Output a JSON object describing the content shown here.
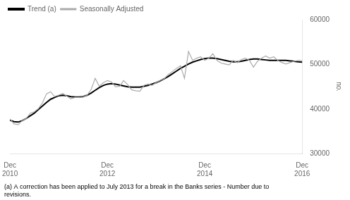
{
  "chart_data": {
    "type": "line",
    "ylabel": "no.",
    "annotations": [
      "(a) A correction has been applied to July 2013 for a break in the Banks series - Number due to\nrevisions."
    ],
    "categories": [
      "Dec\n2010",
      null,
      null,
      null,
      null,
      null,
      null,
      null,
      null,
      null,
      null,
      null,
      null,
      null,
      null,
      null,
      null,
      null,
      null,
      null,
      null,
      null,
      null,
      null,
      "Dec\n2012",
      null,
      null,
      null,
      null,
      null,
      null,
      null,
      null,
      null,
      null,
      null,
      null,
      null,
      null,
      null,
      null,
      null,
      null,
      null,
      null,
      null,
      null,
      null,
      "Dec\n2014",
      null,
      null,
      null,
      null,
      null,
      null,
      null,
      null,
      null,
      null,
      null,
      null,
      null,
      null,
      null,
      null,
      null,
      null,
      null,
      null,
      null,
      null,
      null,
      "Dec\n2016"
    ],
    "series": [
      {
        "name": "Seasonally Adjusted",
        "color": "#aaaaaa",
        "values": [
          37800,
          36700,
          36500,
          37400,
          37900,
          39100,
          39400,
          40100,
          41400,
          43400,
          43900,
          42800,
          43100,
          43500,
          42900,
          42300,
          42600,
          42600,
          42700,
          43100,
          44400,
          46900,
          45100,
          45900,
          46400,
          46100,
          45000,
          45100,
          46400,
          45500,
          44300,
          44100,
          44000,
          45300,
          45600,
          45300,
          45900,
          46400,
          46800,
          47700,
          48400,
          49100,
          49700,
          46900,
          52900,
          50900,
          51400,
          51700,
          50900,
          51400,
          52400,
          50900,
          50300,
          50100,
          49900,
          50900,
          50400,
          51100,
          51400,
          50900,
          49400,
          50700,
          51400,
          51900,
          51400,
          51700,
          50900,
          50400,
          50100,
          50400,
          50700,
          50900,
          50900
        ]
      },
      {
        "name": "Trend (a)",
        "color": "#000000",
        "values": [
          37500,
          37200,
          37100,
          37400,
          37900,
          38500,
          39100,
          39900,
          40700,
          41500,
          42200,
          42600,
          43000,
          43100,
          43000,
          42800,
          42700,
          42700,
          42800,
          43100,
          43600,
          44200,
          44800,
          45300,
          45600,
          45700,
          45600,
          45400,
          45200,
          45000,
          44900,
          44900,
          44900,
          45100,
          45300,
          45600,
          45900,
          46300,
          46800,
          47300,
          47900,
          48500,
          49100,
          49600,
          50100,
          50500,
          50800,
          51100,
          51300,
          51400,
          51400,
          51300,
          51100,
          50900,
          50700,
          50600,
          50600,
          50700,
          50900,
          51100,
          51200,
          51200,
          51100,
          51000,
          50900,
          50900,
          50900,
          50900,
          50900,
          50800,
          50700,
          50600,
          50500
        ]
      }
    ],
    "ylim": [
      30000,
      60000
    ],
    "yticks": [
      30000,
      40000,
      50000,
      60000
    ],
    "grid": false,
    "legend": "upper left"
  }
}
